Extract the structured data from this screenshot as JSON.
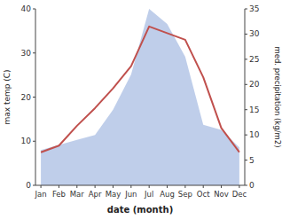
{
  "chart_data": {
    "type": "line",
    "xlabel": "date (month)",
    "ylabel": "max temp (C)",
    "y2label": "med. precipitation (kg/m2)",
    "categories": [
      "Jan",
      "Feb",
      "Mar",
      "Apr",
      "May",
      "Jun",
      "Jul",
      "Aug",
      "Sep",
      "Oct",
      "Nov",
      "Dec"
    ],
    "series": [
      {
        "type": "line",
        "color": "#c0504d",
        "values": [
          7.5,
          9.0,
          13.5,
          17.5,
          22.0,
          27.0,
          36.0,
          34.5,
          33.0,
          24.5,
          13.0,
          7.5
        ]
      },
      {
        "type": "area",
        "axis": "y2",
        "color": "#b8c9e8",
        "values": [
          7.0,
          8.0,
          9.0,
          10.0,
          15.0,
          22.0,
          35.0,
          32.0,
          25.5,
          12.0,
          11.0,
          7.5
        ]
      }
    ],
    "ylim": [
      0,
      40
    ],
    "yticks": [
      0,
      10,
      20,
      30,
      40
    ],
    "y2lim": [
      0,
      35
    ],
    "y2ticks": [
      0,
      5,
      10,
      15,
      20,
      25,
      30,
      35
    ],
    "grid": false
  }
}
